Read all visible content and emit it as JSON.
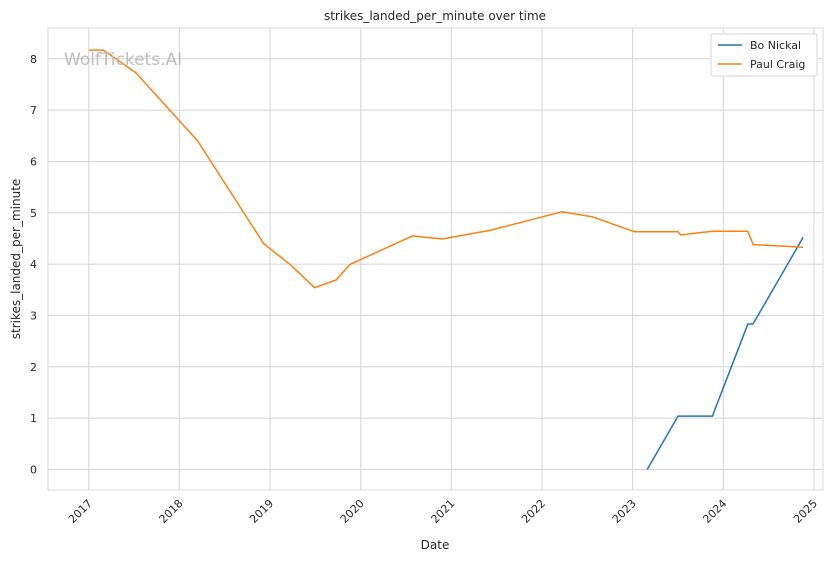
{
  "chart_data": {
    "type": "line",
    "title": "strikes_landed_per_minute over time",
    "xlabel": "Date",
    "ylabel": "strikes_landed_per_minute",
    "watermark": "WolfTickets.AI",
    "xlim": [
      2016.55,
      2025.1
    ],
    "ylim": [
      -0.4,
      8.6
    ],
    "x_ticks": [
      2017,
      2018,
      2019,
      2020,
      2021,
      2022,
      2023,
      2024,
      2025
    ],
    "x_tick_labels": [
      "2017",
      "2018",
      "2019",
      "2020",
      "2021",
      "2022",
      "2023",
      "2024",
      "2025"
    ],
    "y_ticks": [
      0,
      1,
      2,
      3,
      4,
      5,
      6,
      7,
      8
    ],
    "y_tick_labels": [
      "0",
      "1",
      "2",
      "3",
      "4",
      "5",
      "6",
      "7",
      "8"
    ],
    "grid": true,
    "legend_position": "top-right",
    "series": [
      {
        "name": "Bo Nickal",
        "color": "#1f77b4",
        "points": [
          [
            2023.16,
            0.0
          ],
          [
            2023.5,
            1.04
          ],
          [
            2023.88,
            1.04
          ],
          [
            2024.27,
            2.83
          ],
          [
            2024.33,
            2.84
          ],
          [
            2024.88,
            4.52
          ]
        ]
      },
      {
        "name": "Paul Craig",
        "color": "#ff7f0e",
        "points": [
          [
            2017.0,
            8.17
          ],
          [
            2017.16,
            8.17
          ],
          [
            2017.52,
            7.73
          ],
          [
            2018.2,
            6.4
          ],
          [
            2018.93,
            4.4
          ],
          [
            2019.23,
            3.98
          ],
          [
            2019.49,
            3.54
          ],
          [
            2019.73,
            3.69
          ],
          [
            2019.88,
            3.99
          ],
          [
            2020.57,
            4.55
          ],
          [
            2020.9,
            4.49
          ],
          [
            2021.43,
            4.66
          ],
          [
            2022.22,
            5.02
          ],
          [
            2022.56,
            4.92
          ],
          [
            2023.02,
            4.63
          ],
          [
            2023.5,
            4.63
          ],
          [
            2023.53,
            4.57
          ],
          [
            2023.88,
            4.64
          ],
          [
            2024.27,
            4.64
          ],
          [
            2024.33,
            4.38
          ],
          [
            2024.88,
            4.33
          ]
        ]
      }
    ]
  }
}
